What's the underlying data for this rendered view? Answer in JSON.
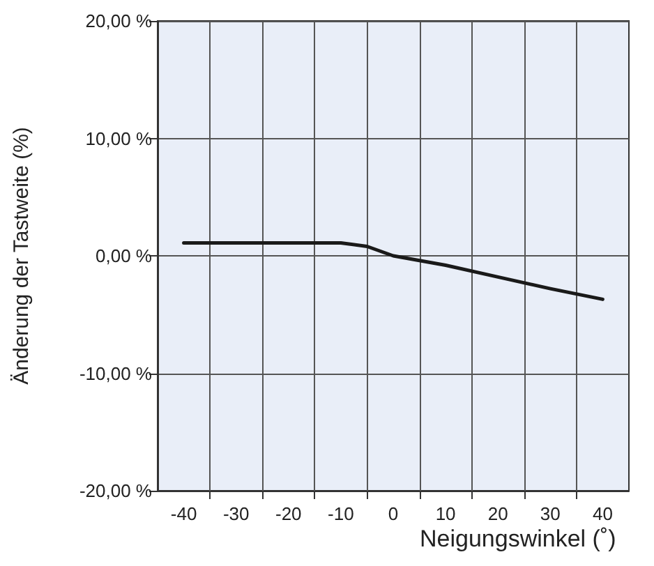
{
  "chart_data": {
    "type": "line",
    "xlabel": "Neigungswinkel (˚)",
    "ylabel": "Änderung der Tastweite (%)",
    "x": [
      -40,
      -10,
      -5,
      0,
      10,
      20,
      30,
      40
    ],
    "series": [
      {
        "color": "#1a1a1a",
        "values": [
          1.1,
          1.1,
          0.8,
          0,
          -0.8,
          -1.8,
          -2.8,
          -3.7
        ]
      }
    ],
    "xlim": [
      -45,
      45
    ],
    "xticks": [
      -40,
      -30,
      -20,
      -10,
      0,
      10,
      20,
      30,
      40,
      {
        "value": -35,
        "label": null
      },
      {
        "value": -25,
        "label": null
      },
      {
        "value": -15,
        "label": null
      },
      {
        "value": -5,
        "label": null
      },
      {
        "value": 5,
        "label": null
      },
      {
        "value": 15,
        "label": null
      },
      {
        "value": 25,
        "label": null
      },
      {
        "value": 35,
        "label": null
      }
    ],
    "ylim": [
      -20,
      20
    ],
    "yticks": [
      {
        "value": -20,
        "label": "-20,00 %"
      },
      {
        "value": -10,
        "label": "-10,00 %"
      },
      {
        "value": 0,
        "label": "0,00 %"
      },
      {
        "value": 10,
        "label": "10,00 %"
      },
      {
        "value": 20,
        "label": "20,00 %"
      }
    ],
    "grid": true,
    "marker": "none",
    "line_style": "solid"
  }
}
